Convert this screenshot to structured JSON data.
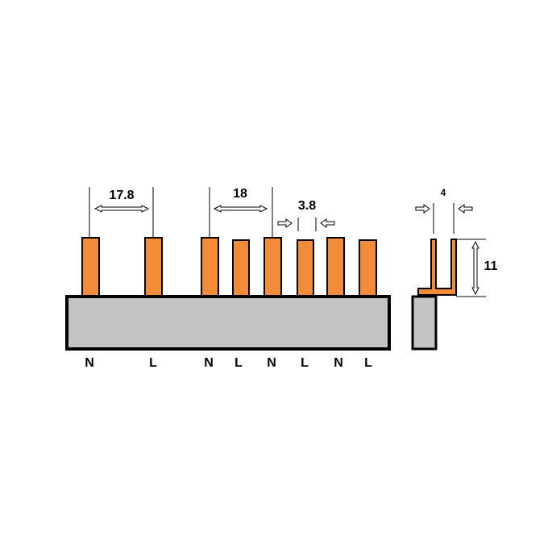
{
  "dimensions": {
    "pin_pitch_first": "17.8",
    "pin_pitch": "18",
    "pin_width": "3.8",
    "side_width": "4",
    "pin_height": "11"
  },
  "pins": [
    "N",
    "L",
    "N",
    "L",
    "N",
    "L",
    "N",
    "L"
  ]
}
